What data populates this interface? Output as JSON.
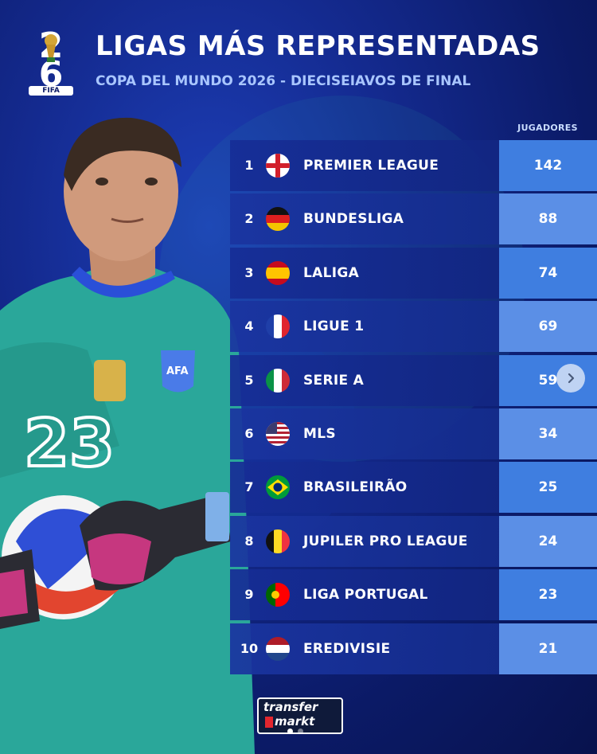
{
  "header": {
    "logo_top": "2",
    "logo_bottom": "6",
    "logo_label": "FIFA",
    "title": "LIGAS MÁS REPRESENTADAS",
    "subtitle": "COPA DEL MUNDO 2026 - DIECISEIAVOS DE FINAL"
  },
  "table": {
    "value_header": "JUGADORES",
    "rows": [
      {
        "rank": "1",
        "league": "PREMIER LEAGUE",
        "value": "142",
        "flag": "england-flag-icon"
      },
      {
        "rank": "2",
        "league": "BUNDESLIGA",
        "value": "88",
        "flag": "germany-flag-icon"
      },
      {
        "rank": "3",
        "league": "LALIGA",
        "value": "74",
        "flag": "spain-flag-icon"
      },
      {
        "rank": "4",
        "league": "LIGUE 1",
        "value": "69",
        "flag": "france-flag-icon"
      },
      {
        "rank": "5",
        "league": "SERIE A",
        "value": "59",
        "flag": "italy-flag-icon"
      },
      {
        "rank": "6",
        "league": "MLS",
        "value": "34",
        "flag": "usa-flag-icon"
      },
      {
        "rank": "7",
        "league": "BRASILEIRÃO",
        "value": "25",
        "flag": "brazil-flag-icon"
      },
      {
        "rank": "8",
        "league": "JUPILER PRO LEAGUE",
        "value": "24",
        "flag": "belgium-flag-icon"
      },
      {
        "rank": "9",
        "league": "LIGA PORTUGAL",
        "value": "23",
        "flag": "portugal-flag-icon"
      },
      {
        "rank": "10",
        "league": "EREDIVISIE",
        "value": "21",
        "flag": "netherlands-flag-icon"
      }
    ]
  },
  "player": {
    "shirt_number": "23",
    "badge_text": "AFA"
  },
  "footer": {
    "brand_line1": "transfer",
    "brand_line2": "markt"
  },
  "carousel": {
    "current_page": 1,
    "total_pages": 2
  }
}
